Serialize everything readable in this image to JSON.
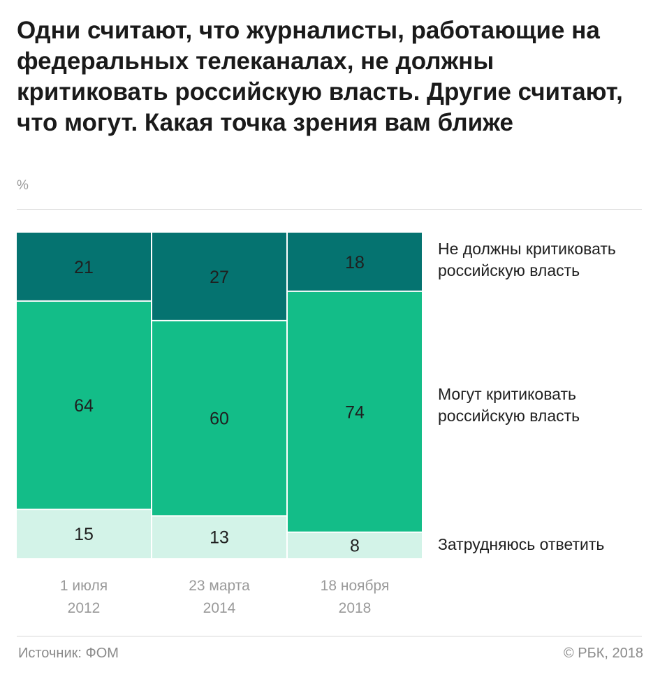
{
  "title": "Одни считают, что журналисты, работающие на федеральных телеканалах, не должны критиковать российскую власть. Другие считают, что могут. Какая точка зрения вам ближе",
  "unit": "%",
  "source": "Источник: ФОМ",
  "copyright": "© РБК, 2018",
  "colors": {
    "dark_teal": "#057370",
    "green": "#13bd88",
    "light_mint": "#d3f3e8",
    "text": "#1f1f1f",
    "muted": "#9a9a9a"
  },
  "chart_data": {
    "type": "bar",
    "stacked": true,
    "orientation": "vertical",
    "categories": [
      {
        "line1": "1 июля",
        "line2": "2012"
      },
      {
        "line1": "23 марта",
        "line2": "2014"
      },
      {
        "line1": "18 ноября",
        "line2": "2018"
      }
    ],
    "series": [
      {
        "name": "Не должны критиковать российскую власть",
        "values": [
          21,
          27,
          18
        ],
        "color": "#057370"
      },
      {
        "name": "Могут критиковать российскую власть",
        "values": [
          64,
          60,
          74
        ],
        "color": "#13bd88"
      },
      {
        "name": "Затрудняюсь ответить",
        "values": [
          15,
          13,
          8
        ],
        "color": "#d3f3e8"
      }
    ],
    "legend": [
      {
        "line1": "Не должны критиковать",
        "line2": "российскую власть"
      },
      {
        "line1": "Могут критиковать",
        "line2": "российскую власть"
      },
      {
        "line1": "Затрудняюсь ответить",
        "line2": ""
      }
    ],
    "legend_position": "right",
    "ylim": [
      0,
      100
    ],
    "grid": false
  }
}
